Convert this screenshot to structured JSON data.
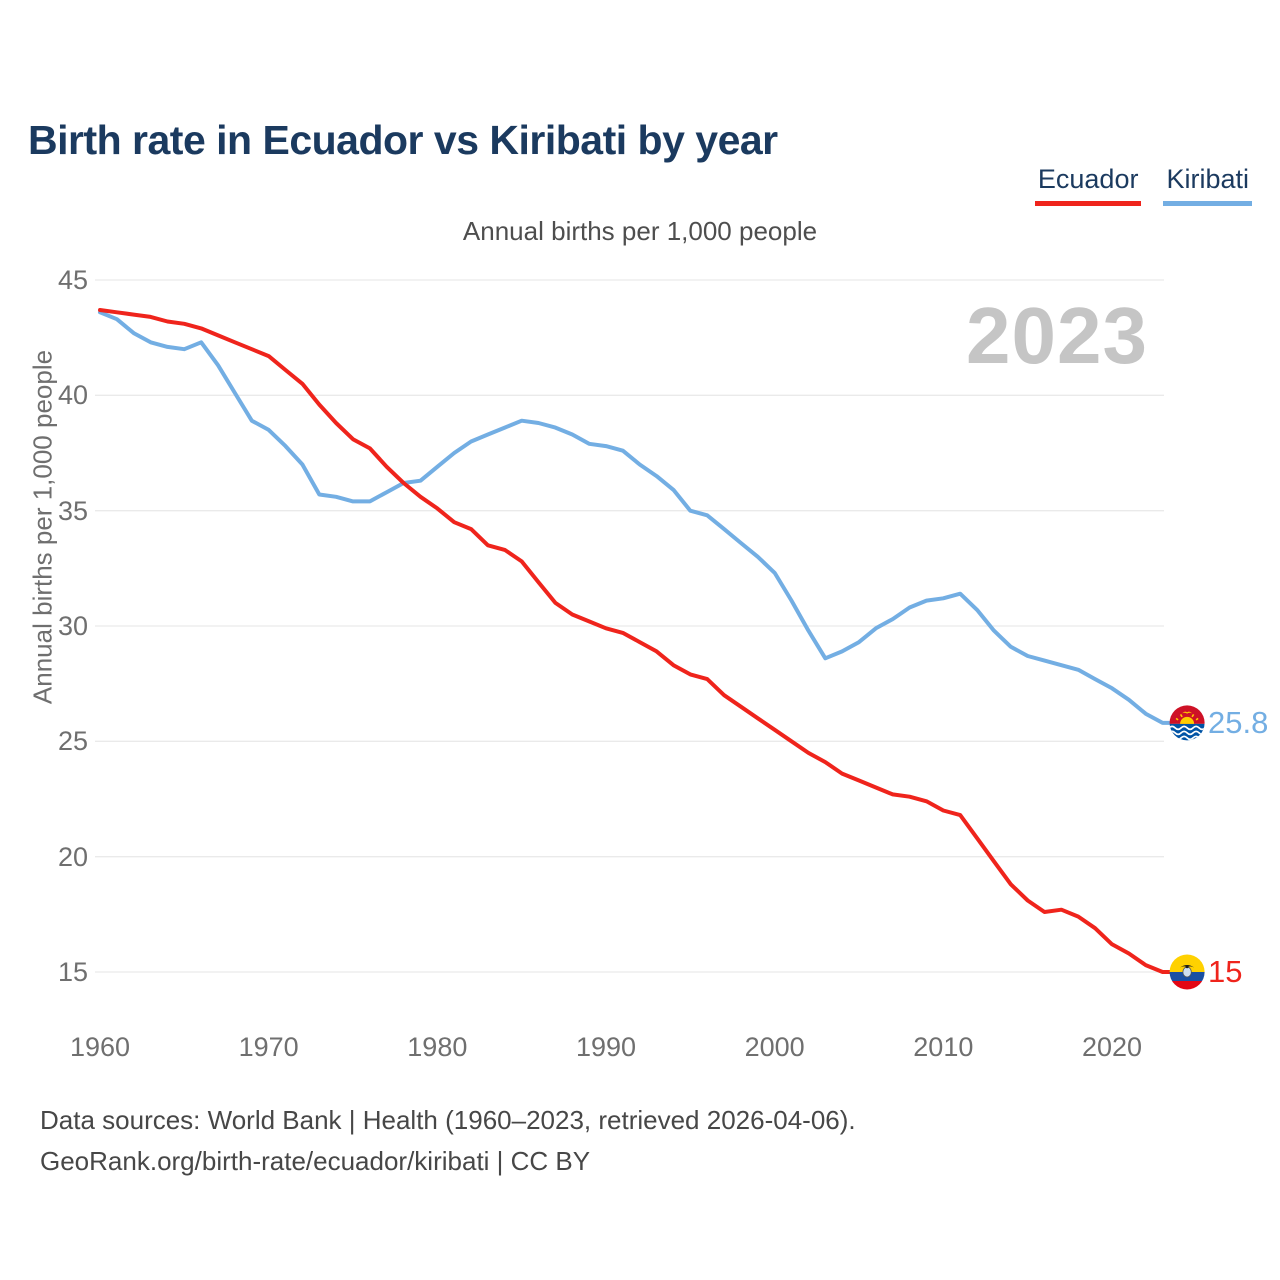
{
  "page": {
    "title": "Birth rate in Ecuador vs Kiribati by year",
    "subtitle": "Annual births per 1,000 people",
    "watermark": "2023",
    "footer_line1": "Data sources: World Bank | Health (1960–2023, retrieved 2026-04-06).",
    "footer_line2": "GeoRank.org/birth-rate/ecuador/kiribati | CC BY"
  },
  "legend": [
    {
      "label": "Ecuador",
      "color": "#ef241c"
    },
    {
      "label": "Kiribati",
      "color": "#73aee3"
    }
  ],
  "colors": {
    "ecuador_red": "#ef241c",
    "kiribati_blue": "#73aee3",
    "title_navy": "#1b3a5f",
    "grid": "#eaeaea",
    "tick_gray": "#6f6f6f",
    "watermark_gray": "#c5c5c5"
  },
  "chart_data": {
    "type": "line",
    "title": "Birth rate in Ecuador vs Kiribati by year",
    "subtitle": "Annual births per 1,000 people",
    "xlabel": "",
    "ylabel": "Annual births per 1,000 people",
    "xlim": [
      1960,
      2023
    ],
    "ylim": [
      15,
      45
    ],
    "grid": "horizontal",
    "legend_position": "top-right",
    "x_ticks": [
      1960,
      1970,
      1980,
      1990,
      2000,
      2010,
      2020
    ],
    "y_ticks": [
      45,
      40,
      35,
      30,
      25,
      20,
      15
    ],
    "x": [
      1960,
      1961,
      1962,
      1963,
      1964,
      1965,
      1966,
      1967,
      1968,
      1969,
      1970,
      1971,
      1972,
      1973,
      1974,
      1975,
      1976,
      1977,
      1978,
      1979,
      1980,
      1981,
      1982,
      1983,
      1984,
      1985,
      1986,
      1987,
      1988,
      1989,
      1990,
      1991,
      1992,
      1993,
      1994,
      1995,
      1996,
      1997,
      1998,
      1999,
      2000,
      2001,
      2002,
      2003,
      2004,
      2005,
      2006,
      2007,
      2008,
      2009,
      2010,
      2011,
      2012,
      2013,
      2014,
      2015,
      2016,
      2017,
      2018,
      2019,
      2020,
      2021,
      2022,
      2023
    ],
    "series": [
      {
        "name": "Ecuador",
        "color": "#ef241c",
        "end_label": "15",
        "end_value": 15.0,
        "values": [
          43.7,
          43.6,
          43.5,
          43.4,
          43.2,
          43.1,
          42.9,
          42.6,
          42.3,
          42.0,
          41.7,
          41.1,
          40.5,
          39.6,
          38.8,
          38.1,
          37.7,
          36.9,
          36.2,
          35.6,
          35.1,
          34.5,
          34.2,
          33.5,
          33.3,
          32.8,
          31.9,
          31.0,
          30.5,
          30.2,
          29.9,
          29.7,
          29.3,
          28.9,
          28.3,
          27.9,
          27.7,
          27.0,
          26.5,
          26.0,
          25.5,
          25.0,
          24.5,
          24.1,
          23.6,
          23.3,
          23.0,
          22.7,
          22.6,
          22.4,
          22.0,
          21.8,
          20.8,
          19.8,
          18.8,
          18.1,
          17.6,
          17.7,
          17.4,
          16.9,
          16.2,
          15.8,
          15.3,
          15.0
        ]
      },
      {
        "name": "Kiribati",
        "color": "#73aee3",
        "end_label": "25.8",
        "end_value": 25.8,
        "values": [
          43.6,
          43.3,
          42.7,
          42.3,
          42.1,
          42.0,
          42.3,
          41.3,
          40.1,
          38.9,
          38.5,
          37.8,
          37.0,
          35.7,
          35.6,
          35.4,
          35.4,
          35.8,
          36.2,
          36.3,
          36.9,
          37.5,
          38.0,
          38.3,
          38.6,
          38.9,
          38.8,
          38.6,
          38.3,
          37.9,
          37.8,
          37.6,
          37.0,
          36.5,
          35.9,
          35.0,
          34.8,
          34.2,
          33.6,
          33.0,
          32.3,
          31.1,
          29.8,
          28.6,
          28.9,
          29.3,
          29.9,
          30.3,
          30.8,
          31.1,
          31.2,
          31.4,
          30.7,
          29.8,
          29.1,
          28.7,
          28.5,
          28.3,
          28.1,
          27.7,
          27.3,
          26.8,
          26.2,
          25.8
        ]
      }
    ]
  }
}
